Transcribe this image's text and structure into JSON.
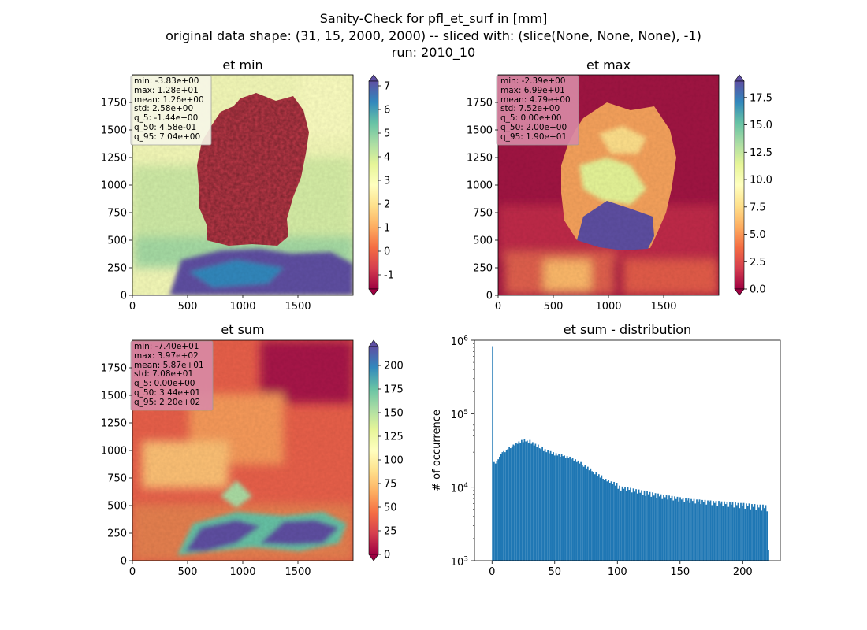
{
  "figure": {
    "title_lines": [
      "Sanity-Check for pfl_et_surf in [mm]",
      "original data shape: (31, 15, 2000, 2000) -- sliced with: (slice(None, None, None), -1)",
      "run: 2010_10"
    ]
  },
  "colormap": {
    "name": "Spectral",
    "stops": [
      "#9e0142",
      "#d53e4f",
      "#f46d43",
      "#fdae61",
      "#fee08b",
      "#ffffbf",
      "#e6f598",
      "#abdda4",
      "#66c2a5",
      "#3288bd",
      "#5e4fa2"
    ]
  },
  "chart_data": [
    {
      "type": "heatmap",
      "title": "et min",
      "x_ticks": [
        "0",
        "500",
        "1000",
        "1500"
      ],
      "y_ticks": [
        "0",
        "250",
        "500",
        "750",
        "1000",
        "1250",
        "1500",
        "1750"
      ],
      "xlim": [
        0,
        2000
      ],
      "ylim": [
        0,
        2000
      ],
      "colorbar": {
        "min": -1.6,
        "max": 7.2,
        "ticks": [
          "-1",
          "0",
          "1",
          "2",
          "3",
          "4",
          "5",
          "6",
          "7"
        ],
        "extend": "both"
      },
      "stats": [
        "min: -3.83e+00",
        "max: 1.28e+01",
        "mean: 1.26e+00",
        "std: 2.58e+00",
        "q_5: -1.44e+00",
        "q_50: 4.58e-01",
        "q_95: 7.04e+00"
      ],
      "stats_box_color": "#f7f7e8"
    },
    {
      "type": "heatmap",
      "title": "et max",
      "x_ticks": [
        "0",
        "500",
        "1000",
        "1500"
      ],
      "y_ticks": [
        "0",
        "250",
        "500",
        "750",
        "1000",
        "1250",
        "1500",
        "1750"
      ],
      "xlim": [
        0,
        2000
      ],
      "ylim": [
        0,
        2000
      ],
      "colorbar": {
        "min": 0,
        "max": 19,
        "ticks": [
          "0.0",
          "2.5",
          "5.0",
          "7.5",
          "10.0",
          "12.5",
          "15.0",
          "17.5"
        ],
        "extend": "both"
      },
      "stats": [
        "min: -2.39e+00",
        "max: 6.99e+01",
        "mean: 4.79e+00",
        "std: 7.52e+00",
        "q_5: 0.00e+00",
        "q_50: 2.00e+00",
        "q_95: 1.90e+01"
      ],
      "stats_box_color": "#d98aa6"
    },
    {
      "type": "heatmap",
      "title": "et sum",
      "x_ticks": [
        "0",
        "500",
        "1000",
        "1500"
      ],
      "y_ticks": [
        "0",
        "250",
        "500",
        "750",
        "1000",
        "1250",
        "1500",
        "1750"
      ],
      "xlim": [
        0,
        2000
      ],
      "ylim": [
        0,
        2000
      ],
      "colorbar": {
        "min": 0,
        "max": 220,
        "ticks": [
          "0",
          "25",
          "50",
          "75",
          "100",
          "125",
          "150",
          "175",
          "200"
        ],
        "extend": "both"
      },
      "stats": [
        "min: -7.40e+01",
        "max: 3.97e+02",
        "mean: 5.87e+01",
        "std: 7.08e+01",
        "q_5: 0.00e+00",
        "q_50: 3.44e+01",
        "q_95: 2.20e+02"
      ],
      "stats_box_color": "#d98aa6"
    },
    {
      "type": "bar",
      "title": "et sum - distribution",
      "ylabel": "# of occurrence",
      "yscale": "log",
      "xlim": [
        -14,
        230
      ],
      "ylim": [
        1000,
        1000000
      ],
      "x_ticks": [
        0,
        50,
        100,
        150,
        200
      ],
      "y_ticks": [
        {
          "value": 1000,
          "base": "10",
          "exp": "3"
        },
        {
          "value": 10000,
          "base": "10",
          "exp": "4"
        },
        {
          "value": 100000,
          "base": "10",
          "exp": "5"
        },
        {
          "value": 1000000,
          "base": "10",
          "exp": "6"
        }
      ],
      "bar_color": "#1f77b4",
      "bin_width": 1.1,
      "bins": [
        {
          "x": 0,
          "y": 830000
        },
        {
          "x": 1.1,
          "y": 22000
        },
        {
          "x": 2.2,
          "y": 21000
        },
        {
          "x": 3.3,
          "y": 22500
        },
        {
          "x": 4.4,
          "y": 24000
        },
        {
          "x": 5.5,
          "y": 26000
        },
        {
          "x": 6.6,
          "y": 28000
        },
        {
          "x": 7.7,
          "y": 30000
        },
        {
          "x": 8.8,
          "y": 31000
        },
        {
          "x": 9.9,
          "y": 30000
        },
        {
          "x": 11,
          "y": 32000
        },
        {
          "x": 12.1,
          "y": 33000
        },
        {
          "x": 13.2,
          "y": 35000
        },
        {
          "x": 14.3,
          "y": 34000
        },
        {
          "x": 15.4,
          "y": 36000
        },
        {
          "x": 16.5,
          "y": 38000
        },
        {
          "x": 17.6,
          "y": 37000
        },
        {
          "x": 18.7,
          "y": 40000
        },
        {
          "x": 19.8,
          "y": 39000
        },
        {
          "x": 20.9,
          "y": 42000
        },
        {
          "x": 22,
          "y": 40000
        },
        {
          "x": 23.1,
          "y": 44000
        },
        {
          "x": 24.2,
          "y": 41000
        },
        {
          "x": 25.3,
          "y": 45000
        },
        {
          "x": 26.4,
          "y": 42000
        },
        {
          "x": 27.5,
          "y": 43000
        },
        {
          "x": 28.6,
          "y": 40000
        },
        {
          "x": 29.7,
          "y": 44000
        },
        {
          "x": 30.8,
          "y": 39000
        },
        {
          "x": 31.9,
          "y": 41000
        },
        {
          "x": 33,
          "y": 37000
        },
        {
          "x": 34.1,
          "y": 39000
        },
        {
          "x": 35.2,
          "y": 35000
        },
        {
          "x": 36.3,
          "y": 38000
        },
        {
          "x": 37.4,
          "y": 34000
        },
        {
          "x": 38.5,
          "y": 33000
        },
        {
          "x": 39.6,
          "y": 35000
        },
        {
          "x": 40.7,
          "y": 31000
        },
        {
          "x": 41.8,
          "y": 33000
        },
        {
          "x": 42.9,
          "y": 30000
        },
        {
          "x": 44,
          "y": 32000
        },
        {
          "x": 45.1,
          "y": 29000
        },
        {
          "x": 46.2,
          "y": 31000
        },
        {
          "x": 47.3,
          "y": 28000
        },
        {
          "x": 48.4,
          "y": 30000
        },
        {
          "x": 49.5,
          "y": 27000
        },
        {
          "x": 50.6,
          "y": 29000
        },
        {
          "x": 51.7,
          "y": 27000
        },
        {
          "x": 52.8,
          "y": 28000
        },
        {
          "x": 53.9,
          "y": 26000
        },
        {
          "x": 55,
          "y": 28000
        },
        {
          "x": 56.1,
          "y": 26500
        },
        {
          "x": 57.2,
          "y": 27000
        },
        {
          "x": 58.3,
          "y": 25000
        },
        {
          "x": 59.4,
          "y": 26500
        },
        {
          "x": 60.5,
          "y": 25000
        },
        {
          "x": 61.6,
          "y": 26000
        },
        {
          "x": 62.7,
          "y": 24000
        },
        {
          "x": 63.8,
          "y": 25000
        },
        {
          "x": 64.9,
          "y": 23000
        },
        {
          "x": 66,
          "y": 24000
        },
        {
          "x": 67.1,
          "y": 22000
        },
        {
          "x": 68.2,
          "y": 23000
        },
        {
          "x": 69.3,
          "y": 21000
        },
        {
          "x": 70.4,
          "y": 22000
        },
        {
          "x": 71.5,
          "y": 20000
        },
        {
          "x": 72.6,
          "y": 19000
        },
        {
          "x": 73.7,
          "y": 20000
        },
        {
          "x": 74.8,
          "y": 18000
        },
        {
          "x": 75.9,
          "y": 19000
        },
        {
          "x": 77,
          "y": 17000
        },
        {
          "x": 78.1,
          "y": 18000
        },
        {
          "x": 79.2,
          "y": 16500
        },
        {
          "x": 80.3,
          "y": 16000
        },
        {
          "x": 81.4,
          "y": 15000
        },
        {
          "x": 82.5,
          "y": 16000
        },
        {
          "x": 83.6,
          "y": 14000
        },
        {
          "x": 84.7,
          "y": 15000
        },
        {
          "x": 85.8,
          "y": 13500
        },
        {
          "x": 86.9,
          "y": 14500
        },
        {
          "x": 88,
          "y": 13000
        },
        {
          "x": 89.1,
          "y": 12500
        },
        {
          "x": 90.2,
          "y": 13000
        },
        {
          "x": 91.3,
          "y": 12000
        },
        {
          "x": 92.4,
          "y": 12500
        },
        {
          "x": 93.5,
          "y": 11500
        },
        {
          "x": 94.6,
          "y": 12000
        },
        {
          "x": 95.7,
          "y": 11000
        },
        {
          "x": 96.8,
          "y": 11800
        },
        {
          "x": 97.9,
          "y": 10500
        },
        {
          "x": 99,
          "y": 11500
        },
        {
          "x": 100.1,
          "y": 9500
        },
        {
          "x": 101.2,
          "y": 10500
        },
        {
          "x": 102.3,
          "y": 9000
        },
        {
          "x": 103.4,
          "y": 10200
        },
        {
          "x": 104.5,
          "y": 9500
        },
        {
          "x": 105.6,
          "y": 10000
        },
        {
          "x": 106.7,
          "y": 8800
        },
        {
          "x": 107.8,
          "y": 10000
        },
        {
          "x": 108.9,
          "y": 9200
        },
        {
          "x": 110,
          "y": 9800
        },
        {
          "x": 111.1,
          "y": 8500
        },
        {
          "x": 112.2,
          "y": 9600
        },
        {
          "x": 113.3,
          "y": 8700
        },
        {
          "x": 114.4,
          "y": 9400
        },
        {
          "x": 115.5,
          "y": 8200
        },
        {
          "x": 116.6,
          "y": 9300
        },
        {
          "x": 117.7,
          "y": 8400
        },
        {
          "x": 118.8,
          "y": 9100
        },
        {
          "x": 119.9,
          "y": 7800
        },
        {
          "x": 121,
          "y": 9000
        },
        {
          "x": 122.1,
          "y": 7600
        },
        {
          "x": 123.2,
          "y": 8800
        },
        {
          "x": 124.3,
          "y": 8000
        },
        {
          "x": 125.4,
          "y": 8600
        },
        {
          "x": 126.5,
          "y": 7400
        },
        {
          "x": 127.6,
          "y": 8500
        },
        {
          "x": 128.7,
          "y": 7700
        },
        {
          "x": 129.8,
          "y": 8300
        },
        {
          "x": 130.9,
          "y": 7100
        },
        {
          "x": 132,
          "y": 8200
        },
        {
          "x": 133.1,
          "y": 7500
        },
        {
          "x": 134.2,
          "y": 8000
        },
        {
          "x": 135.3,
          "y": 6900
        },
        {
          "x": 136.4,
          "y": 7900
        },
        {
          "x": 137.5,
          "y": 7300
        },
        {
          "x": 138.6,
          "y": 7800
        },
        {
          "x": 139.7,
          "y": 6800
        },
        {
          "x": 140.8,
          "y": 7700
        },
        {
          "x": 141.9,
          "y": 7100
        },
        {
          "x": 143,
          "y": 7600
        },
        {
          "x": 144.1,
          "y": 6600
        },
        {
          "x": 145.2,
          "y": 7500
        },
        {
          "x": 146.3,
          "y": 6900
        },
        {
          "x": 147.4,
          "y": 7400
        },
        {
          "x": 148.5,
          "y": 6400
        },
        {
          "x": 149.6,
          "y": 7300
        },
        {
          "x": 150.7,
          "y": 6800
        },
        {
          "x": 151.8,
          "y": 7200
        },
        {
          "x": 152.9,
          "y": 6300
        },
        {
          "x": 154,
          "y": 7100
        },
        {
          "x": 155.1,
          "y": 6600
        },
        {
          "x": 156.2,
          "y": 7000
        },
        {
          "x": 157.3,
          "y": 6100
        },
        {
          "x": 158.4,
          "y": 6900
        },
        {
          "x": 159.5,
          "y": 6500
        },
        {
          "x": 160.6,
          "y": 6900
        },
        {
          "x": 161.7,
          "y": 6000
        },
        {
          "x": 162.8,
          "y": 6800
        },
        {
          "x": 163.9,
          "y": 6400
        },
        {
          "x": 165,
          "y": 6800
        },
        {
          "x": 166.1,
          "y": 5900
        },
        {
          "x": 167.2,
          "y": 6700
        },
        {
          "x": 168.3,
          "y": 6300
        },
        {
          "x": 169.4,
          "y": 6700
        },
        {
          "x": 170.5,
          "y": 5800
        },
        {
          "x": 171.6,
          "y": 6600
        },
        {
          "x": 172.7,
          "y": 6200
        },
        {
          "x": 173.8,
          "y": 6600
        },
        {
          "x": 174.9,
          "y": 5700
        },
        {
          "x": 176,
          "y": 6500
        },
        {
          "x": 177.1,
          "y": 6100
        },
        {
          "x": 178.2,
          "y": 6500
        },
        {
          "x": 179.3,
          "y": 5600
        },
        {
          "x": 180.4,
          "y": 6500
        },
        {
          "x": 181.5,
          "y": 6000
        },
        {
          "x": 182.6,
          "y": 6400
        },
        {
          "x": 183.7,
          "y": 5500
        },
        {
          "x": 184.8,
          "y": 6400
        },
        {
          "x": 185.9,
          "y": 5900
        },
        {
          "x": 187,
          "y": 6300
        },
        {
          "x": 188.1,
          "y": 5400
        },
        {
          "x": 189.2,
          "y": 6300
        },
        {
          "x": 190.3,
          "y": 5800
        },
        {
          "x": 191.4,
          "y": 6200
        },
        {
          "x": 192.5,
          "y": 5300
        },
        {
          "x": 193.6,
          "y": 6200
        },
        {
          "x": 194.7,
          "y": 5700
        },
        {
          "x": 195.8,
          "y": 6100
        },
        {
          "x": 196.9,
          "y": 5200
        },
        {
          "x": 198,
          "y": 6100
        },
        {
          "x": 199.1,
          "y": 5600
        },
        {
          "x": 200.2,
          "y": 6100
        },
        {
          "x": 201.3,
          "y": 5100
        },
        {
          "x": 202.4,
          "y": 6000
        },
        {
          "x": 203.5,
          "y": 5500
        },
        {
          "x": 204.6,
          "y": 6000
        },
        {
          "x": 205.7,
          "y": 5000
        },
        {
          "x": 206.8,
          "y": 5900
        },
        {
          "x": 207.9,
          "y": 5400
        },
        {
          "x": 209,
          "y": 5900
        },
        {
          "x": 210.1,
          "y": 4900
        },
        {
          "x": 211.2,
          "y": 5800
        },
        {
          "x": 212.3,
          "y": 5300
        },
        {
          "x": 213.4,
          "y": 5800
        },
        {
          "x": 214.5,
          "y": 4800
        },
        {
          "x": 215.6,
          "y": 5800
        },
        {
          "x": 216.7,
          "y": 5200
        },
        {
          "x": 217.8,
          "y": 5700
        },
        {
          "x": 218.9,
          "y": 4700
        },
        {
          "x": 220,
          "y": 1400
        }
      ]
    }
  ]
}
